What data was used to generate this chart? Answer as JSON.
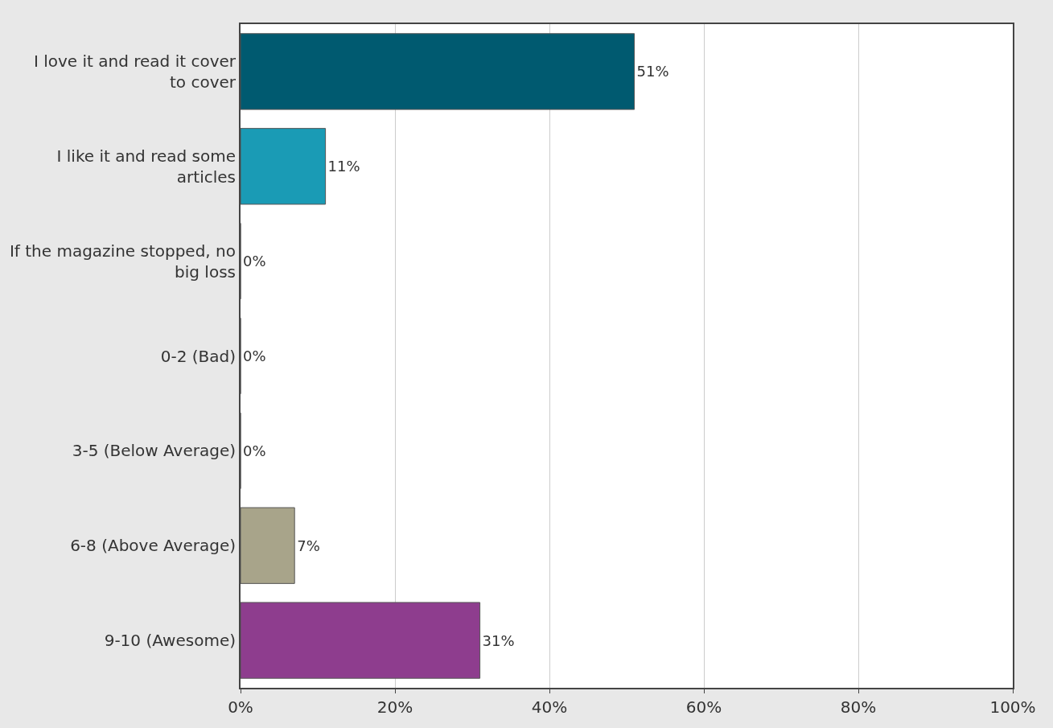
{
  "chart_data": {
    "type": "bar",
    "orientation": "horizontal",
    "categories": [
      "I love it and read it cover to cover",
      "I like it and read some articles",
      "If the magazine stopped, no big loss",
      "0-2 (Bad)",
      "3-5 (Below Average)",
      "6-8 (Above Average)",
      "9-10 (Awesome)"
    ],
    "values": [
      51,
      11,
      0,
      0,
      0,
      7,
      31
    ],
    "value_labels": [
      "51%",
      "11%",
      "0%",
      "0%",
      "0%",
      "7%",
      "31%"
    ],
    "colors": [
      "#005a70",
      "#1a9bb5",
      "#888888",
      "#888888",
      "#888888",
      "#a8a48a",
      "#8e3d8e"
    ],
    "xlim": [
      0,
      100
    ],
    "xticks": [
      {
        "value": 0,
        "label": "0%"
      },
      {
        "value": 20,
        "label": "20%"
      },
      {
        "value": 40,
        "label": "40%"
      },
      {
        "value": 60,
        "label": "60%"
      },
      {
        "value": 80,
        "label": "80%"
      },
      {
        "value": 100,
        "label": "100%"
      }
    ],
    "grid": "x"
  }
}
